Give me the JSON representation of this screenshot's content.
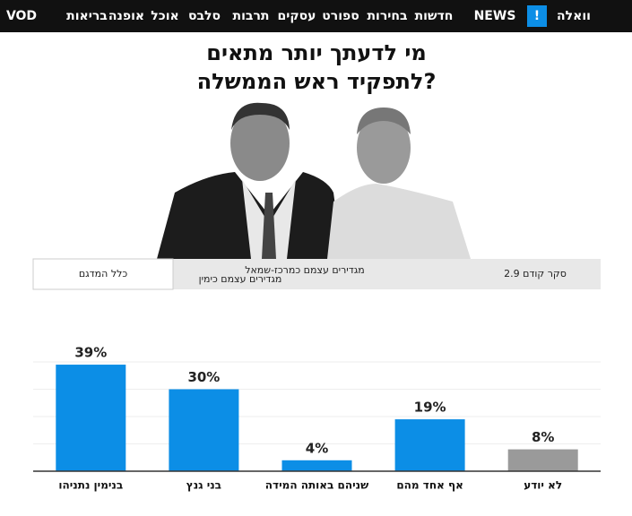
{
  "nav": {
    "logo": "וואלה",
    "logo_mark": "!",
    "logo_news": "NEWS",
    "items": [
      "חדשות",
      "בחירות",
      "ספורט",
      "עסקים",
      "תרבות",
      "סלבס",
      "אוכל",
      "אופנה",
      "בריאות",
      "VOD"
    ]
  },
  "tabs": [
    "כלל המדגם",
    "מגדירים עצמם כימין",
    "מגדירים עצמם כמרכז-שמאל",
    "סקר קודם 2.9"
  ],
  "chart_data": {
    "type": "bar",
    "title": [
      "מי לדעתך יותר מתאים",
      "לתפקיד ראש הממשלה?"
    ],
    "categories": [
      "בנימין נתניהו",
      "בני גנץ",
      "שניהם באותה המידה",
      "אף אחד מהם",
      "לא יודע"
    ],
    "values": [
      39,
      30,
      4,
      19,
      8
    ],
    "value_labels": [
      "39%",
      "30%",
      "4%",
      "19%",
      "8%"
    ],
    "colors": [
      "#0c8ee6",
      "#0c8ee6",
      "#0c8ee6",
      "#0c8ee6",
      "#9a9a9a"
    ],
    "ylim": [
      0,
      60
    ],
    "yticks": [
      10,
      20,
      30,
      40
    ],
    "grid": true
  }
}
